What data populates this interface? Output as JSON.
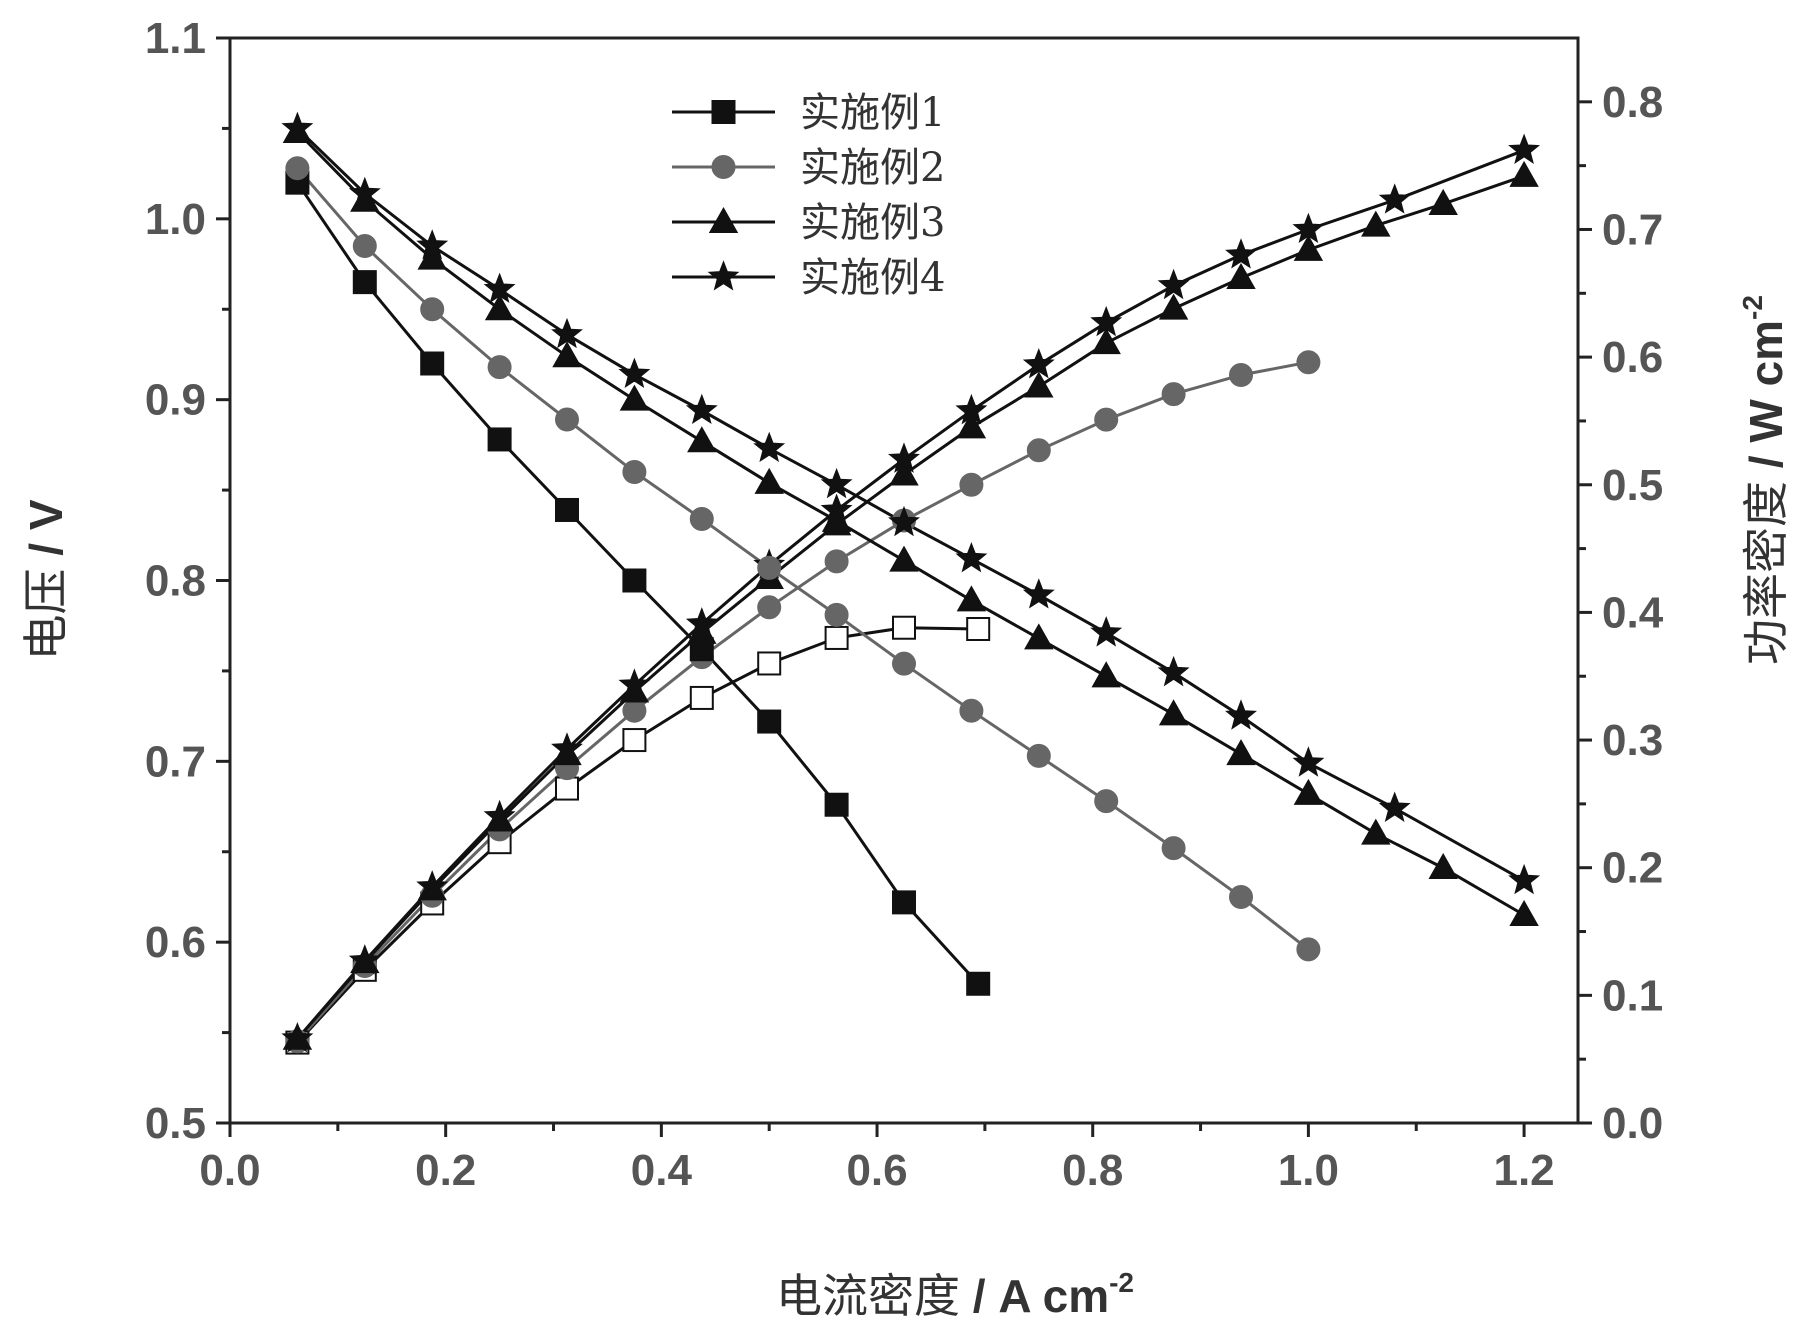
{
  "chart_data": {
    "type": "line",
    "xlabel": {
      "cn": "电流密度",
      "unit": " / A cm",
      "sup": "-2"
    },
    "ylabel_left": {
      "cn": "电压",
      "unit": " / V"
    },
    "ylabel_right": {
      "cn": "功率密度",
      "unit": " / W cm",
      "sup": "-2"
    },
    "xlim": [
      0.0,
      1.25
    ],
    "ylim_left": [
      0.5,
      1.1
    ],
    "ylim_right": [
      0.0,
      0.85
    ],
    "x_ticks": [
      "0.0",
      "0.2",
      "0.4",
      "0.6",
      "0.8",
      "1.0",
      "1.2"
    ],
    "y_left_ticks": [
      "0.5",
      "0.6",
      "0.7",
      "0.8",
      "0.9",
      "1.0",
      "1.1"
    ],
    "y_right_ticks": [
      "0.0",
      "0.1",
      "0.2",
      "0.3",
      "0.4",
      "0.5",
      "0.6",
      "0.7",
      "0.8"
    ],
    "legend_position": "top-center",
    "grid": false,
    "series": [
      {
        "name": "实施例1",
        "marker": "square",
        "color": "#111111",
        "voltage": {
          "x": [
            0.0625,
            0.125,
            0.1875,
            0.25,
            0.3125,
            0.375,
            0.4375,
            0.5,
            0.5625,
            0.625,
            0.6938
          ],
          "y": [
            1.02,
            0.965,
            0.92,
            0.878,
            0.839,
            0.8,
            0.762,
            0.722,
            0.676,
            0.622,
            0.577
          ]
        },
        "power": {
          "x": [
            0.0625,
            0.125,
            0.1875,
            0.25,
            0.3125,
            0.375,
            0.4375,
            0.5,
            0.5625,
            0.625,
            0.6938
          ],
          "y": [
            0.063,
            0.12,
            0.172,
            0.22,
            0.262,
            0.3,
            0.333,
            0.36,
            0.38,
            0.388,
            0.387
          ]
        }
      },
      {
        "name": "实施例2",
        "marker": "circle",
        "color": "#666666",
        "voltage": {
          "x": [
            0.0625,
            0.125,
            0.1875,
            0.25,
            0.3125,
            0.375,
            0.4375,
            0.5,
            0.5625,
            0.625,
            0.6875,
            0.75,
            0.8125,
            0.875,
            0.9375,
            1.0
          ],
          "y": [
            1.028,
            0.985,
            0.95,
            0.918,
            0.889,
            0.86,
            0.834,
            0.807,
            0.781,
            0.754,
            0.728,
            0.703,
            0.678,
            0.652,
            0.625,
            0.596
          ]
        },
        "power": {
          "x": [
            0.0625,
            0.125,
            0.1875,
            0.25,
            0.3125,
            0.375,
            0.4375,
            0.5,
            0.5625,
            0.625,
            0.6875,
            0.75,
            0.8125,
            0.875,
            0.9375,
            1.0
          ],
          "y": [
            0.064,
            0.123,
            0.178,
            0.23,
            0.278,
            0.323,
            0.365,
            0.404,
            0.44,
            0.472,
            0.5,
            0.527,
            0.551,
            0.571,
            0.586,
            0.596
          ]
        }
      },
      {
        "name": "实施例3",
        "marker": "triangle",
        "color": "#111111",
        "voltage": {
          "x": [
            0.0625,
            0.125,
            0.1875,
            0.25,
            0.3125,
            0.375,
            0.4375,
            0.5,
            0.5625,
            0.625,
            0.6875,
            0.75,
            0.8125,
            0.875,
            0.9375,
            1.0,
            1.0625,
            1.125,
            1.2
          ],
          "y": [
            1.048,
            1.01,
            0.978,
            0.95,
            0.924,
            0.9,
            0.877,
            0.854,
            0.833,
            0.811,
            0.789,
            0.768,
            0.747,
            0.726,
            0.704,
            0.682,
            0.66,
            0.641,
            0.615
          ]
        },
        "power": {
          "x": [
            0.0625,
            0.125,
            0.1875,
            0.25,
            0.3125,
            0.375,
            0.4375,
            0.5,
            0.5625,
            0.625,
            0.6875,
            0.75,
            0.8125,
            0.875,
            0.9375,
            1.0,
            1.0625,
            1.125,
            1.2
          ],
          "y": [
            0.066,
            0.126,
            0.183,
            0.237,
            0.289,
            0.338,
            0.384,
            0.427,
            0.469,
            0.508,
            0.545,
            0.577,
            0.611,
            0.638,
            0.662,
            0.684,
            0.703,
            0.72,
            0.742
          ]
        }
      },
      {
        "name": "实施例4",
        "marker": "star",
        "color": "#111111",
        "voltage": {
          "x": [
            0.0625,
            0.125,
            0.1875,
            0.25,
            0.3125,
            0.375,
            0.4375,
            0.5,
            0.5625,
            0.625,
            0.6875,
            0.75,
            0.8125,
            0.875,
            0.9375,
            1.0,
            1.08,
            1.2
          ],
          "y": [
            1.05,
            1.014,
            0.985,
            0.961,
            0.936,
            0.914,
            0.894,
            0.873,
            0.853,
            0.832,
            0.812,
            0.792,
            0.771,
            0.749,
            0.725,
            0.699,
            0.674,
            0.634
          ]
        },
        "power": {
          "x": [
            0.0625,
            0.125,
            0.1875,
            0.25,
            0.3125,
            0.375,
            0.4375,
            0.5,
            0.5625,
            0.625,
            0.6875,
            0.75,
            0.8125,
            0.875,
            0.9375,
            1.0,
            1.08,
            1.2
          ],
          "y": [
            0.066,
            0.127,
            0.185,
            0.24,
            0.293,
            0.343,
            0.391,
            0.437,
            0.48,
            0.52,
            0.558,
            0.594,
            0.627,
            0.656,
            0.68,
            0.7,
            0.723,
            0.762
          ]
        }
      }
    ]
  }
}
